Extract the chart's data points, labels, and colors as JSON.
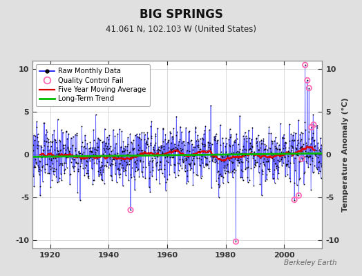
{
  "title": "BIG SPRINGS",
  "subtitle": "41.061 N, 102.103 W (United States)",
  "ylabel": "Temperature Anomaly (°C)",
  "watermark": "Berkeley Earth",
  "year_start": 1914,
  "year_end": 2013,
  "ylim": [
    -11,
    11
  ],
  "yticks": [
    -10,
    -5,
    0,
    5,
    10
  ],
  "xticks": [
    1920,
    1940,
    1960,
    1980,
    2000
  ],
  "fig_bg": "#e0e0e0",
  "plot_bg": "#ffffff",
  "raw_line_color": "#5555ff",
  "raw_dot_color": "#000000",
  "qc_fail_color": "#ff69b4",
  "moving_avg_color": "#dd0000",
  "trend_color": "#00bb00",
  "title_fontsize": 12,
  "subtitle_fontsize": 8.5,
  "tick_fontsize": 8,
  "ylabel_fontsize": 8
}
